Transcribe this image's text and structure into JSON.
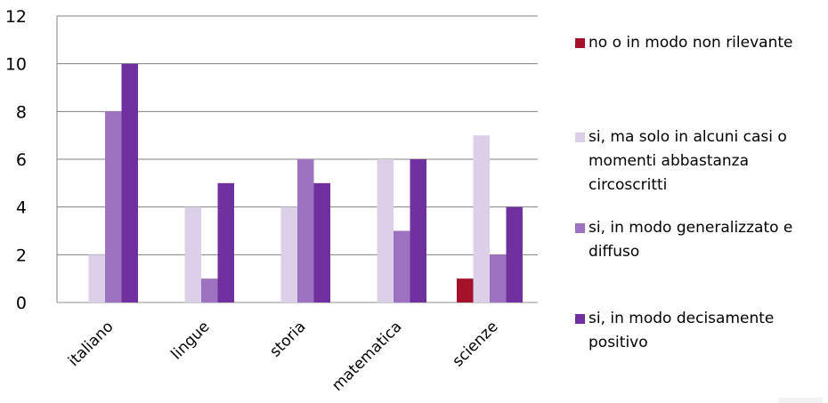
{
  "chart_data": {
    "type": "bar",
    "categories": [
      "italiano",
      "lingue",
      "storia",
      "matematica",
      "scienze"
    ],
    "ylim": [
      0,
      12
    ],
    "yticks": [
      0,
      2,
      4,
      6,
      8,
      10,
      12
    ],
    "grid": true,
    "legend_position": "right",
    "series": [
      {
        "name": "no o in modo non rilevante",
        "color": "#a5102b",
        "values": [
          0,
          0,
          0,
          0,
          1
        ]
      },
      {
        "name": "si, ma solo in  alcuni casi o momenti abbastanza circoscritti",
        "color": "#dccfe8",
        "values": [
          2,
          4,
          4,
          6,
          7
        ]
      },
      {
        "name": "si, in modo generalizzato e diffuso",
        "color": "#9d72c0",
        "values": [
          8,
          1,
          6,
          3,
          2
        ]
      },
      {
        "name": "si, in modo decisamente positivo",
        "color": "#7030a0",
        "values": [
          10,
          5,
          5,
          6,
          4
        ]
      }
    ]
  }
}
